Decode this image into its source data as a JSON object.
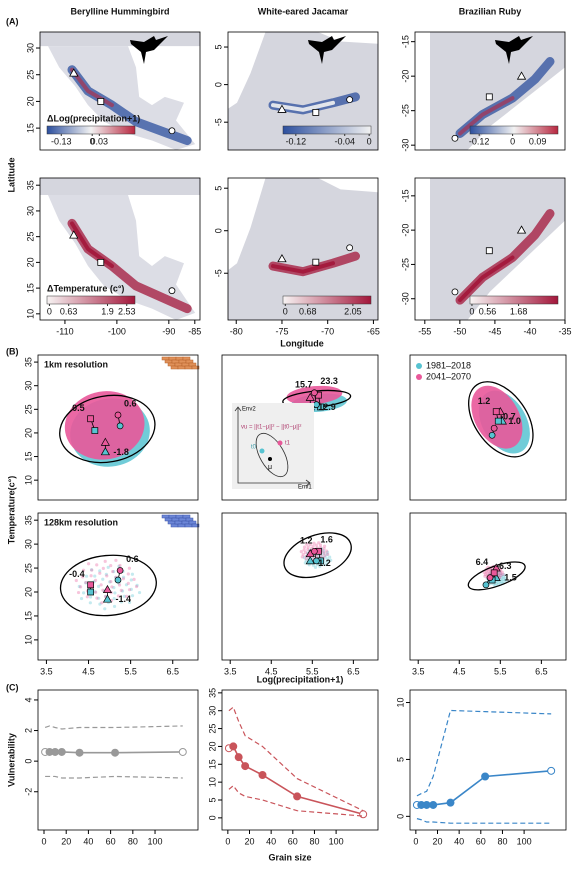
{
  "figure": {
    "panel_A": "(A)",
    "panel_B": "(B)",
    "panel_C": "(C)",
    "latitude": "Latitude",
    "longitude": "Longitude",
    "temperature": "Temperature(c°)",
    "log_precip": "Log(precipitation+1)",
    "vulnerability": "Vulnerability",
    "grain": "Grain size"
  },
  "chart_data": [
    {
      "type": "map",
      "title": "Berylline Hummingbird",
      "xlim": [
        -114.8,
        -84
      ],
      "ylim": [
        10.9,
        33
      ],
      "yticks": [
        15,
        20,
        25,
        30
      ],
      "colorbar": {
        "title": "ΔLog(precipitation+1)",
        "lim": [
          -0.19,
          0.18
        ],
        "ticks": [
          -0.13,
          0,
          0.03
        ],
        "colors": [
          "#2c4f9e",
          "#f2f2f2",
          "#b8273f"
        ]
      },
      "sites": {
        "x": [
          -108.3,
          -103.1,
          -89.4
        ],
        "y": [
          25.3,
          20,
          14.5
        ]
      }
    },
    {
      "type": "map",
      "title": "White-eared Jacamar",
      "xlim": [
        -80.9,
        -64.5
      ],
      "ylim": [
        -8.7,
        7
      ],
      "yticks": [
        -5,
        0,
        5
      ],
      "colorbar": {
        "lim": [
          -0.141,
          0.003
        ],
        "ticks": [
          -0.12,
          -0.04,
          0
        ],
        "colors": [
          "#2c4f9e",
          "#f2f2f2"
        ]
      },
      "sites": {
        "x": [
          -75,
          -71.3,
          -67.6
        ],
        "y": [
          -3.3,
          -3.7,
          -2
        ]
      }
    },
    {
      "type": "map",
      "title": "Brazilian Ruby",
      "xlim": [
        -56.4,
        -35
      ],
      "ylim": [
        -30.7,
        -13.6
      ],
      "yticks": [
        -30,
        -25,
        -20,
        -15
      ],
      "colorbar": {
        "lim": [
          -0.153,
          0.163
        ],
        "ticks": [
          -0.12,
          0,
          0.09
        ],
        "colors": [
          "#2c4f9e",
          "#f2f2f2",
          "#b8273f"
        ]
      },
      "sites": {
        "x": [
          -41.2,
          -45.8,
          -50.7
        ],
        "y": [
          -20,
          -23,
          -29
        ]
      }
    },
    {
      "type": "map",
      "xlim": [
        -114.8,
        -84
      ],
      "xticks": [
        -110,
        -100,
        -90,
        -85
      ],
      "ylim": [
        8.8,
        36.4
      ],
      "yticks": [
        10,
        15,
        20,
        25,
        30,
        35
      ],
      "colorbar": {
        "title": "ΔTemperature (c°)",
        "lim": [
          -0.08,
          2.8
        ],
        "ticks": [
          0,
          0.63,
          1.9,
          2.53
        ],
        "colors": [
          "#f7f4f4",
          "#a3163a"
        ]
      },
      "sites": {
        "x": [
          -108.3,
          -103.1,
          -89.4
        ],
        "y": [
          25.3,
          20,
          14.5
        ]
      }
    },
    {
      "type": "map",
      "xlim": [
        -80.9,
        -64.5
      ],
      "xticks": [
        -80,
        -75,
        -70,
        -65
      ],
      "ylim": [
        -10.5,
        6.2
      ],
      "yticks": [
        -5,
        0,
        5
      ],
      "colorbar": {
        "lim": [
          -0.07,
          2.6
        ],
        "ticks": [
          0,
          0.68,
          2.05
        ],
        "colors": [
          "#f7f4f4",
          "#a3163a"
        ]
      },
      "sites": {
        "x": [
          -75,
          -71.3,
          -67.6
        ],
        "y": [
          -3.3,
          -3.7,
          -2
        ]
      }
    },
    {
      "type": "map",
      "xlim": [
        -56.4,
        -35
      ],
      "xticks": [
        -55,
        -50,
        -45,
        -40,
        -35
      ],
      "ylim": [
        -33.1,
        -12.4
      ],
      "yticks": [
        -30,
        -25,
        -20,
        -15
      ],
      "colorbar": {
        "lim": [
          -0.07,
          3.1
        ],
        "ticks": [
          0,
          0.56,
          1.68
        ],
        "colors": [
          "#f7f4f4",
          "#a3163a"
        ]
      },
      "sites": {
        "x": [
          -41.2,
          -45.8,
          -50.7
        ],
        "y": [
          -20,
          -23,
          -29
        ]
      }
    },
    {
      "type": "scatter",
      "subtitle": "1km resolution",
      "xlim": [
        3.3,
        7.1
      ],
      "ylim": [
        5.8,
        36.5
      ],
      "yticks": [
        10,
        15,
        20,
        25,
        30,
        35
      ],
      "series": [
        {
          "color": "#57c3d1",
          "x": [
            4.9,
            4.65,
            5.25
          ],
          "y": [
            16,
            20.5,
            21.5
          ]
        },
        {
          "color": "#e9589a",
          "x": [
            4.9,
            4.55,
            5.2
          ],
          "y": [
            18,
            23,
            23.8
          ]
        }
      ],
      "vulnerability": [
        -1.8,
        0.5,
        0.6
      ],
      "value_labels": [
        "-1.8",
        "0.5",
        "0.6"
      ]
    },
    {
      "type": "scatter",
      "xlim": [
        3.3,
        7.1
      ],
      "ylim": [
        5.8,
        36.5
      ],
      "series": [
        {
          "color": "#57c3d1",
          "x": [
            5.45,
            5.7,
            5.6
          ],
          "y": [
            25.5,
            25.5,
            26
          ]
        },
        {
          "color": "#e9589a",
          "x": [
            5.45,
            5.65,
            5.55
          ],
          "y": [
            27.5,
            28,
            28.5
          ]
        }
      ],
      "vulnerability": [
        12.9,
        15.7,
        23.3
      ],
      "value_labels": [
        "12.9",
        "15.7",
        "23.3"
      ],
      "inset": {
        "formula": "vu = ||t1−μ||² − ||t0−μ||²",
        "axis_y": "Env2",
        "axis_x": "Env1",
        "t1": "t1",
        "t0": "t0",
        "mu": "μ"
      }
    },
    {
      "type": "scatter",
      "xlim": [
        3.3,
        7.1
      ],
      "ylim": [
        5.8,
        36.5
      ],
      "legend": "top-left",
      "series": [
        {
          "name": "1981–2018",
          "color": "#57c3d1",
          "x": [
            5.55,
            5.45,
            5.3
          ],
          "y": [
            22.5,
            22.5,
            19.5
          ]
        },
        {
          "name": "2041–2070",
          "color": "#e9589a",
          "x": [
            5.5,
            5.4,
            5.35
          ],
          "y": [
            24.5,
            24.5,
            21
          ]
        }
      ],
      "vulnerability": [
        1,
        1.2,
        -0.7
      ],
      "value_labels": [
        "1.0",
        "1.2",
        "-0.7"
      ]
    },
    {
      "type": "scatter",
      "subtitle": "128km resolution",
      "xlim": [
        3.3,
        7.1
      ],
      "xticks": [
        3.5,
        4.5,
        5.5,
        6.5
      ],
      "ylim": [
        5.8,
        36.5
      ],
      "yticks": [
        10,
        15,
        20,
        25,
        30,
        35
      ],
      "series": [
        {
          "color": "#57c3d1",
          "x": [
            4.95,
            4.55,
            5.2
          ],
          "y": [
            18.5,
            20,
            22.5
          ]
        },
        {
          "color": "#e9589a",
          "x": [
            4.95,
            4.55,
            5.25
          ],
          "y": [
            20.5,
            21.5,
            24.5
          ]
        }
      ],
      "vulnerability": [
        -1.4,
        -0.4,
        0.6
      ],
      "value_labels": [
        "-1.4",
        "-0.4",
        "0.6"
      ]
    },
    {
      "type": "scatter",
      "xlim": [
        3.3,
        7.1
      ],
      "xticks": [
        3.5,
        4.5,
        5.5,
        6.5
      ],
      "ylim": [
        5.8,
        36.5
      ],
      "series": [
        {
          "color": "#57c3d1",
          "x": [
            5.45,
            5.7,
            5.6
          ],
          "y": [
            26.5,
            26.5,
            26.5
          ]
        },
        {
          "color": "#e9589a",
          "x": [
            5.45,
            5.65,
            5.55
          ],
          "y": [
            28,
            28.5,
            28.5
          ]
        }
      ],
      "vulnerability": [
        1.2,
        1.2,
        1.6
      ],
      "value_labels": [
        "1.2",
        "1.2",
        "1.6"
      ]
    },
    {
      "type": "scatter",
      "xlim": [
        3.3,
        7.1
      ],
      "xticks": [
        3.5,
        4.5,
        5.5,
        6.5
      ],
      "ylim": [
        5.8,
        36.5
      ],
      "series": [
        {
          "color": "#57c3d1",
          "x": [
            5.4,
            5.3,
            5.15
          ],
          "y": [
            23,
            22.5,
            21.5
          ]
        },
        {
          "color": "#e9589a",
          "x": [
            5.4,
            5.35,
            5.25
          ],
          "y": [
            25,
            24,
            23
          ]
        }
      ],
      "vulnerability": [
        1.5,
        6.4,
        -6.3
      ],
      "value_labels": [
        "1.5",
        "6.4",
        "-6.3"
      ]
    },
    {
      "type": "line",
      "x": [
        1,
        5,
        10,
        16,
        32,
        64,
        125
      ],
      "xlim": [
        -5.4,
        138.7
      ],
      "xticks": [
        0,
        20,
        40,
        60,
        80,
        100
      ],
      "ylim": [
        -4.5,
        4.65
      ],
      "yticks": [
        -2,
        0,
        2,
        4
      ],
      "series": [
        {
          "color": "#999999",
          "values": [
            0.6,
            0.6,
            0.6,
            0.6,
            0.55,
            0.55,
            0.6
          ],
          "markers": true
        },
        {
          "color": "#999999",
          "values": [
            2.2,
            2.3,
            2.2,
            2.1,
            2.2,
            2.2,
            2.3
          ],
          "dash": true
        },
        {
          "color": "#999999",
          "values": [
            -1,
            -1,
            -1,
            -1.1,
            -1.1,
            -1,
            -1.1
          ],
          "dash": true
        }
      ]
    },
    {
      "type": "line",
      "x": [
        1,
        5,
        10,
        16,
        32,
        64,
        125
      ],
      "xlim": [
        -5.4,
        138.7
      ],
      "xticks": [
        0,
        20,
        40,
        60,
        80,
        100
      ],
      "ylim": [
        -3.4,
        35.8
      ],
      "yticks": [
        0,
        5,
        10,
        15,
        20,
        25,
        30,
        35
      ],
      "series": [
        {
          "color": "#c9545a",
          "values": [
            19.5,
            20,
            17,
            14.5,
            12,
            6,
            1
          ],
          "markers": true
        },
        {
          "color": "#c9545a",
          "values": [
            30,
            31,
            27,
            23,
            20,
            11,
            2
          ],
          "dash": true
        },
        {
          "color": "#c9545a",
          "values": [
            8,
            9,
            7,
            6,
            5,
            2,
            0.5
          ],
          "dash": true
        }
      ]
    },
    {
      "type": "line",
      "x": [
        1,
        5,
        10,
        16,
        32,
        64,
        125
      ],
      "xlim": [
        -5.4,
        138.7
      ],
      "xticks": [
        0,
        20,
        40,
        60,
        80,
        100
      ],
      "ylim": [
        -1.2,
        11.1
      ],
      "yticks": [
        0,
        5,
        10
      ],
      "series": [
        {
          "color": "#3a86c8",
          "values": [
            1,
            1,
            1,
            1,
            1.2,
            3.5,
            4
          ],
          "markers": true
        },
        {
          "color": "#3a86c8",
          "values": [
            1.8,
            2,
            2.2,
            3.5,
            9.3,
            9.2,
            9
          ],
          "dash": true
        },
        {
          "color": "#3a86c8",
          "values": [
            -0.2,
            -0.3,
            -0.5,
            -0.5,
            -0.6,
            -0.6,
            -0.6
          ],
          "dash": true
        }
      ]
    }
  ]
}
